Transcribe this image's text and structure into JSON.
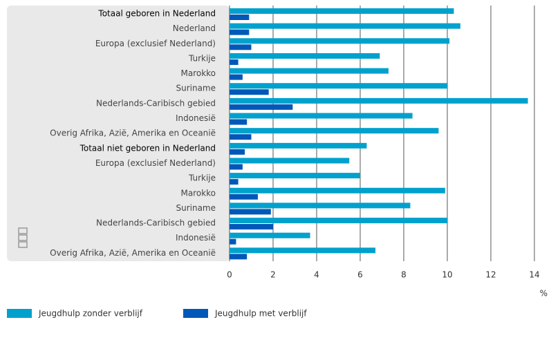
{
  "chart_data": {
    "type": "bar",
    "orientation": "horizontal",
    "categories": [
      "Totaal geboren in Nederland",
      "Nederland",
      "Europa (exclusief Nederland)",
      "Turkije",
      "Marokko",
      "Suriname",
      "Nederlands-Caribisch gebied",
      "Indonesië",
      "Overig Afrika, Azië, Amerika en Oceanië",
      "Totaal niet geboren in Nederland",
      "Europa (exclusief Nederland)",
      "Turkije",
      "Marokko",
      "Suriname",
      "Nederlands-Caribisch gebied",
      "Indonesië",
      "Overig Afrika, Azië, Amerika en Oceanië"
    ],
    "emphasized_categories": [
      0,
      9
    ],
    "series": [
      {
        "name": "Jeugdhulp zonder verblijf",
        "color": "#00a1cd",
        "values": [
          10.3,
          10.6,
          10.1,
          6.9,
          7.3,
          10.0,
          13.7,
          8.4,
          9.6,
          6.3,
          5.5,
          6.0,
          9.9,
          8.3,
          10.0,
          3.7,
          6.7
        ]
      },
      {
        "name": "Jeugdhulp met verblijf",
        "color": "#0058b8",
        "values": [
          0.9,
          0.9,
          1.0,
          0.4,
          0.6,
          1.8,
          2.9,
          0.8,
          1.0,
          0.7,
          0.6,
          0.4,
          1.3,
          1.9,
          2.0,
          0.3,
          0.8
        ]
      }
    ],
    "xlim": [
      0,
      14
    ],
    "xticks": [
      0,
      2,
      4,
      6,
      8,
      10,
      12,
      14
    ],
    "x_unit": "%",
    "grid": true,
    "legend": "bottom-left"
  }
}
